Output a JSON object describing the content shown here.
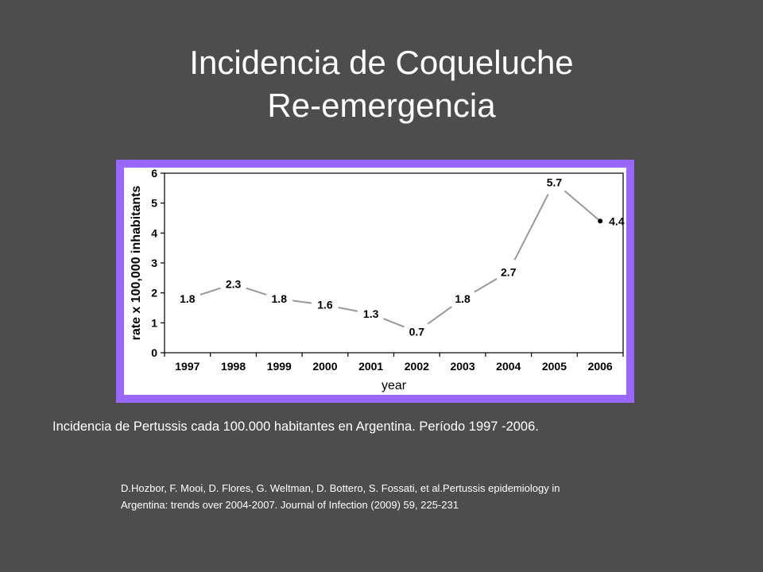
{
  "slide": {
    "title_line1": "Incidencia de Coqueluche",
    "title_line2": "Re-emergencia",
    "caption": "Incidencia de Pertussis cada 100.000 habitantes en Argentina. Período 1997 -2006.",
    "reference_line1": "D.Hozbor, F. Mooi, D. Flores, G. Weltman, D. Bottero, S. Fossati, et al.Pertussis epidemiology in",
    "reference_line2": "Argentina: trends over 2004-2007. Journal of Infection (2009) 59, 225-231"
  },
  "colors": {
    "background": "#4d4d4d",
    "frame": "#9966ff",
    "line": "#999999",
    "text": "#000000"
  },
  "chart_data": {
    "type": "line",
    "categories": [
      "1997",
      "1998",
      "1999",
      "2000",
      "2001",
      "2002",
      "2003",
      "2004",
      "2005",
      "2006"
    ],
    "values": [
      1.8,
      2.3,
      1.8,
      1.6,
      1.3,
      0.7,
      1.8,
      2.7,
      5.7,
      4.4
    ],
    "value_labels": [
      "1.8",
      "2.3",
      "1.8",
      "1.6",
      "1.3",
      "0.7",
      "1.8",
      "2.7",
      "5.7",
      "4.4"
    ],
    "xlabel": "year",
    "ylabel": "rate x 100,000 inhabitants",
    "ylim": [
      0,
      6
    ],
    "yticks": [
      "0",
      "1",
      "2",
      "3",
      "4",
      "5",
      "6"
    ],
    "grid": false,
    "last_point_marker": true
  }
}
